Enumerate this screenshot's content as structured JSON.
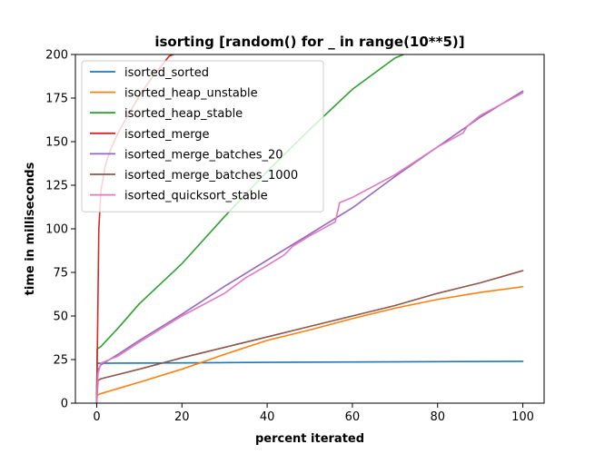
{
  "chart_data": {
    "type": "line",
    "title": "isorting [random() for _ in range(10**5)]",
    "xlabel": "percent iterated",
    "ylabel": "time in milliseconds",
    "xlim": [
      -5,
      105
    ],
    "ylim": [
      0,
      200
    ],
    "xticks": [
      0,
      20,
      40,
      60,
      80,
      100
    ],
    "yticks": [
      0,
      25,
      50,
      75,
      100,
      125,
      150,
      175,
      200
    ],
    "legend": "top-left",
    "grid": false,
    "series": [
      {
        "name": "isorted_sorted",
        "color": "#1f77b4",
        "x": [
          0,
          0.1,
          1,
          20,
          40,
          60,
          80,
          100
        ],
        "y": [
          0,
          22.9,
          22.9,
          23.1,
          23.4,
          23.6,
          23.8,
          24
        ]
      },
      {
        "name": "isorted_heap_unstable",
        "color": "#ff7f0e",
        "x": [
          0,
          0.1,
          1,
          10,
          20,
          30,
          40,
          50,
          60,
          70,
          80,
          90,
          100
        ],
        "y": [
          0,
          4.5,
          5.5,
          12,
          19.5,
          28,
          36,
          42,
          48.5,
          54.5,
          59.5,
          63.5,
          66.8
        ]
      },
      {
        "name": "isorted_heap_stable",
        "color": "#2ca02c",
        "x": [
          0,
          0.1,
          1,
          5,
          10,
          20,
          30,
          40,
          50,
          60,
          70,
          72
        ],
        "y": [
          0,
          31,
          32.5,
          43,
          57,
          80,
          107,
          133,
          157,
          180,
          198,
          200
        ]
      },
      {
        "name": "isorted_merge",
        "color": "#d62728",
        "x": [
          0,
          0.5,
          1,
          2,
          3,
          5,
          8,
          11,
          14,
          17,
          18
        ],
        "y": [
          0,
          100,
          122,
          136,
          144,
          155,
          168,
          180,
          190,
          199,
          200
        ]
      },
      {
        "name": "isorted_merge_batches_20",
        "color": "#9467bd",
        "x": [
          0,
          0.3,
          1,
          5,
          10,
          20,
          30,
          40,
          50,
          60,
          70,
          80,
          90,
          100
        ],
        "y": [
          0,
          19,
          22,
          28,
          36,
          51,
          67,
          82,
          97,
          112,
          130,
          147,
          164,
          179
        ]
      },
      {
        "name": "isorted_merge_batches_1000",
        "color": "#8c564b",
        "x": [
          0,
          0.3,
          1,
          10,
          20,
          30,
          40,
          50,
          60,
          70,
          80,
          90,
          100
        ],
        "y": [
          0,
          13,
          14,
          19.5,
          26,
          32,
          38,
          44,
          50,
          56,
          63,
          69,
          76
        ]
      },
      {
        "name": "isorted_quicksort_stable",
        "color": "#e377c2",
        "x": [
          0,
          0.3,
          1,
          5,
          10,
          20,
          30,
          35,
          40,
          44,
          46,
          50,
          56,
          57,
          60,
          70,
          80,
          86,
          87,
          90,
          100
        ],
        "y": [
          0,
          17,
          23,
          27,
          35,
          50,
          63,
          72,
          79,
          85,
          90,
          96,
          104,
          115,
          118,
          131,
          147,
          155,
          159,
          165,
          178
        ]
      }
    ]
  }
}
